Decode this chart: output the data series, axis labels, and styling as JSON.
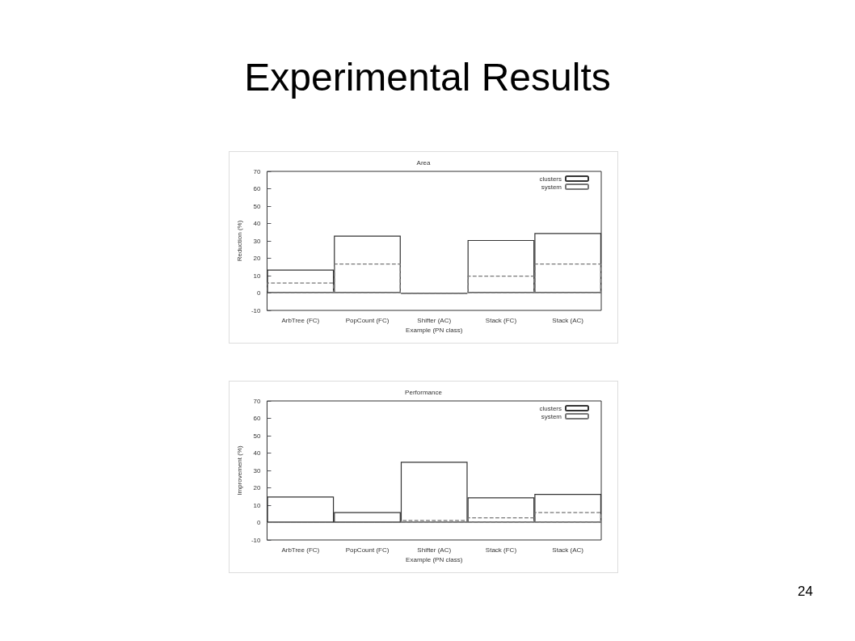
{
  "chart_data": [
    {
      "type": "bar",
      "title": "Area",
      "xlabel": "Example (PN class)",
      "ylabel": "Reduction (%)",
      "annotations": [
        "Experimental Results",
        "24"
      ],
      "categories": [
        "ArbTree (FC)",
        "PopCount (FC)",
        "Shifter (AC)",
        "Stack (FC)",
        "Stack (AC)"
      ],
      "series": [
        {
          "name": "clusters",
          "color": "#333333",
          "line_style": "solid",
          "values": [
            13.5,
            33,
            -0.3,
            30.5,
            34.5
          ]
        },
        {
          "name": "system",
          "color": "#777777",
          "line_style": "dashed",
          "values": [
            6,
            17,
            -0.3,
            10,
            17
          ]
        }
      ],
      "ylim": [
        -10,
        70
      ],
      "yticks": [
        -10,
        0,
        10,
        20,
        30,
        40,
        50,
        60,
        70
      ],
      "grid": false,
      "legend": "top right"
    },
    {
      "type": "bar",
      "title": "Performance",
      "xlabel": "Example (PN class)",
      "ylabel": "Improvement (%)",
      "categories": [
        "ArbTree (FC)",
        "PopCount (FC)",
        "Shifter (AC)",
        "Stack (FC)",
        "Stack (AC)"
      ],
      "series": [
        {
          "name": "clusters",
          "color": "#333333",
          "line_style": "solid",
          "values": [
            15,
            6,
            35,
            14.5,
            16.5
          ]
        },
        {
          "name": "system",
          "color": "#777777",
          "line_style": "dashed",
          "values": [
            0,
            0,
            1.5,
            3,
            6
          ]
        }
      ],
      "ylim": [
        -10,
        70
      ],
      "yticks": [
        -10,
        0,
        10,
        20,
        30,
        40,
        50,
        60,
        70
      ],
      "grid": false,
      "legend": "top right"
    }
  ]
}
